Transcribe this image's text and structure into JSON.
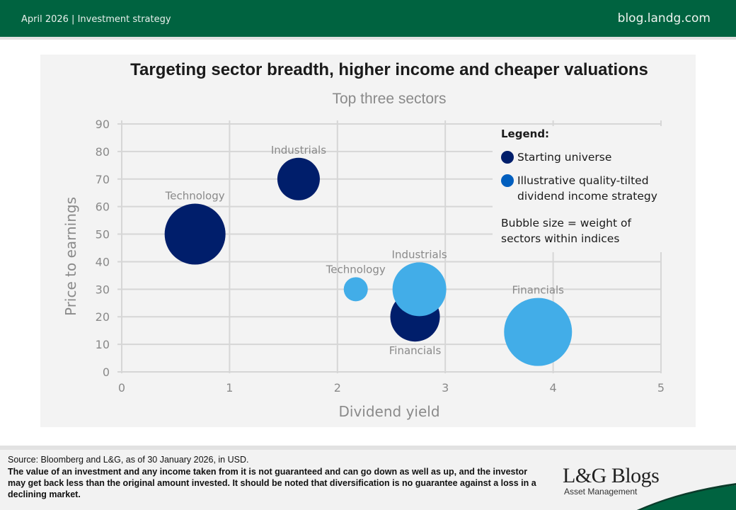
{
  "header": {
    "left_text": "April 2026 |  Investment strategy",
    "right_text": "blog.landg.com",
    "brand_color": "#006340"
  },
  "chart_data": {
    "type": "scatter",
    "subtype": "bubble",
    "title": "Targeting sector breadth, higher income and cheaper valuations",
    "subtitle": "Top three sectors",
    "xlabel": "Dividend yield",
    "ylabel": "Price to earnings",
    "xlim": [
      0,
      5
    ],
    "ylim": [
      0,
      90
    ],
    "x_ticks": [
      "0",
      "1",
      "2",
      "3",
      "4",
      "5"
    ],
    "y_ticks": [
      "0",
      "10",
      "20",
      "30",
      "40",
      "50",
      "60",
      "70",
      "80",
      "90"
    ],
    "grid": true,
    "legend_position": "top-right",
    "series": [
      {
        "name": "Starting universe",
        "color": "#001e6b",
        "points": [
          {
            "label": "Technology",
            "x": 0.68,
            "y": 50,
            "size": 43
          },
          {
            "label": "Industrials",
            "x": 1.64,
            "y": 70,
            "size": 30
          },
          {
            "label": "Financials",
            "x": 2.72,
            "y": 20,
            "size": 35
          }
        ]
      },
      {
        "name": "Illustrative quality-tilted dividend income strategy",
        "color": "#42ade8",
        "legend_color": "#005ebe",
        "points": [
          {
            "label": "Technology",
            "x": 2.17,
            "y": 30,
            "size": 17
          },
          {
            "label": "Industrials",
            "x": 2.76,
            "y": 30,
            "size": 38
          },
          {
            "label": "Financials",
            "x": 3.86,
            "y": 14.5,
            "size": 48
          }
        ]
      }
    ]
  },
  "legend": {
    "title": "Legend:",
    "items": [
      {
        "label": "Starting universe"
      },
      {
        "label": "Illustrative quality-tilted dividend income strategy"
      }
    ],
    "note": "Bubble size = weight of sectors within indices"
  },
  "footer": {
    "source": "Source: Bloomberg and L&G, as of 30 January 2026, in USD.",
    "disclaimer": "The value of an investment and any income taken from it is not guaranteed and can go down as well as up, and the investor may get back less than the original amount invested. It should be noted that diversification is no guarantee against a loss in a declining market.",
    "brand": "L&G Blogs",
    "brand_sub": "Asset Management"
  }
}
